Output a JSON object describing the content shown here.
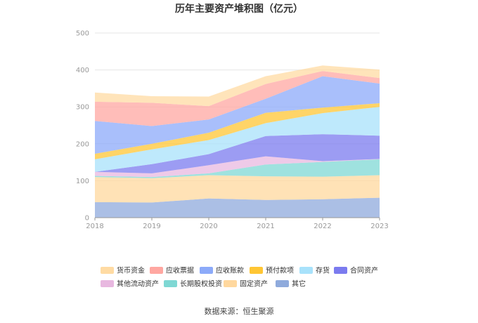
{
  "chart_data": {
    "type": "area",
    "stacked": true,
    "title": "历年主要资产堆积图（亿元）",
    "x": [
      "2018",
      "2019",
      "2020",
      "2021",
      "2022",
      "2023"
    ],
    "ylim": [
      0,
      500
    ],
    "yticks": [
      "0",
      "100",
      "200",
      "300",
      "400",
      "500"
    ],
    "grid": true,
    "legend_position": "bottom",
    "series": [
      {
        "name": "其它",
        "color": "#8faadc",
        "values": [
          42,
          41,
          52,
          48,
          50,
          54
        ]
      },
      {
        "name": "固定资产",
        "color": "#ffd89e",
        "values": [
          68,
          66,
          63,
          64,
          61,
          61
        ]
      },
      {
        "name": "长期股权投资",
        "color": "#7fd8d4",
        "values": [
          3,
          3,
          5,
          32,
          40,
          43
        ]
      },
      {
        "name": "其他流动资产",
        "color": "#e8b8e0",
        "values": [
          11,
          10,
          22,
          22,
          2,
          1
        ]
      },
      {
        "name": "合同资产",
        "color": "#7b7bef",
        "values": [
          0,
          25,
          30,
          55,
          73,
          63
        ]
      },
      {
        "name": "存货",
        "color": "#a8e2fb",
        "values": [
          34,
          40,
          38,
          35,
          57,
          78
        ]
      },
      {
        "name": "预付款项",
        "color": "#ffc634",
        "values": [
          15,
          15,
          20,
          28,
          15,
          10
        ]
      },
      {
        "name": "应收账款",
        "color": "#8caaf9",
        "values": [
          89,
          48,
          36,
          38,
          85,
          53
        ]
      },
      {
        "name": "应收票据",
        "color": "#ffa7a1",
        "values": [
          52,
          63,
          36,
          40,
          14,
          15
        ]
      },
      {
        "name": "货币资金",
        "color": "#ffdba3",
        "values": [
          25,
          18,
          26,
          21,
          15,
          23
        ]
      }
    ],
    "legend_order": [
      "货币资金",
      "应收票据",
      "应收账款",
      "预付款项",
      "存货",
      "合同资产",
      "其他流动资产",
      "长期股权投资",
      "固定资产",
      "其它"
    ]
  },
  "source_text": "数据来源：恒生聚源"
}
